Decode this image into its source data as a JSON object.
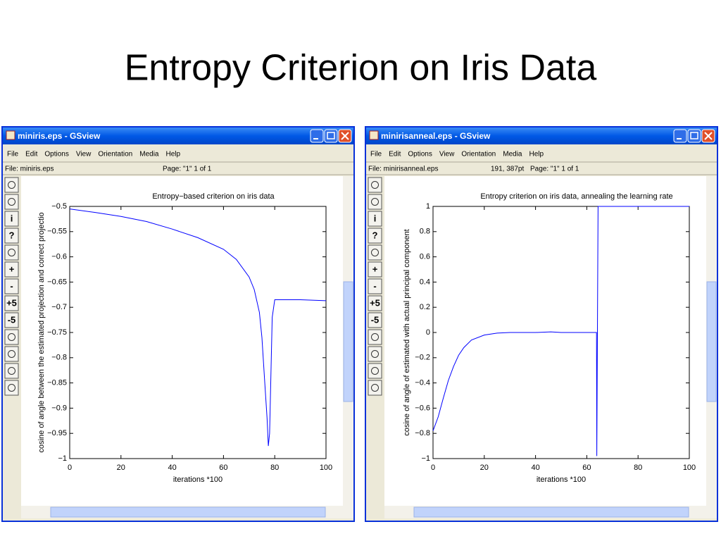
{
  "slide_title": "Entropy Criterion on Iris Data",
  "windows": [
    {
      "title": "miniris.eps - GSview",
      "menu": [
        "File",
        "Edit",
        "Options",
        "View",
        "Orientation",
        "Media",
        "Help"
      ],
      "status": [
        "File: miniris.eps",
        "Page: \"1\"  1 of 1"
      ],
      "toolbar": [
        "i",
        "?",
        "+",
        "-",
        "+5",
        "-5"
      ],
      "chart": {
        "type": "line",
        "title": "Entropy−based criterion on iris data",
        "xlabel": "iterations *100",
        "ylabel": "cosine of angle between the estimated projection and correct projectio",
        "color": "#0000ff",
        "x": [
          0,
          10,
          20,
          30,
          40,
          50,
          60,
          65,
          70,
          72,
          74,
          75,
          76,
          77,
          77.5,
          78,
          79,
          80,
          90,
          100
        ],
        "values": [
          -0.505,
          -0.512,
          -0.52,
          -0.53,
          -0.545,
          -0.562,
          -0.585,
          -0.605,
          -0.64,
          -0.665,
          -0.71,
          -0.76,
          -0.84,
          -0.92,
          -0.975,
          -0.95,
          -0.72,
          -0.685,
          -0.685,
          -0.687
        ],
        "xlim": [
          0,
          100
        ],
        "ylim": [
          -1,
          -0.5
        ],
        "xticks": [
          0,
          20,
          40,
          60,
          80,
          100
        ],
        "yticks": [
          {
            "value": -1,
            "label": "−1"
          },
          {
            "value": -0.95,
            "label": "−0.95"
          },
          {
            "value": -0.9,
            "label": "−0.9"
          },
          {
            "value": -0.85,
            "label": "−0.85"
          },
          {
            "value": -0.8,
            "label": "−0.8"
          },
          {
            "value": -0.75,
            "label": "−0.75"
          },
          {
            "value": -0.7,
            "label": "−0.7"
          },
          {
            "value": -0.65,
            "label": "−0.65"
          },
          {
            "value": -0.6,
            "label": "−0.6"
          },
          {
            "value": -0.55,
            "label": "−0.55"
          },
          {
            "value": -0.5,
            "label": "−0.5"
          }
        ]
      }
    },
    {
      "title": "minirisanneal.eps - GSview",
      "menu": [
        "File",
        "Edit",
        "Options",
        "View",
        "Orientation",
        "Media",
        "Help"
      ],
      "status": [
        "File: minirisanneal.eps",
        "191, 387pt",
        "Page: \"1\"  1 of 1"
      ],
      "toolbar": [
        "i",
        "?",
        "+",
        "-",
        "+5",
        "-5"
      ],
      "chart": {
        "type": "line",
        "title": "Entropy criterion on iris data, annealing the learning rate",
        "xlabel": "iterations *100",
        "ylabel": "cosine of angle of estimated with actual principal component",
        "color": "#0000ff",
        "x": [
          0,
          2,
          4,
          6,
          8,
          10,
          12,
          15,
          20,
          25,
          30,
          40,
          46,
          50,
          63.8,
          63.9,
          64.4,
          100
        ],
        "values": [
          -0.78,
          -0.67,
          -0.52,
          -0.38,
          -0.27,
          -0.18,
          -0.12,
          -0.06,
          -0.02,
          -0.005,
          0,
          0,
          0.005,
          0,
          0,
          -0.98,
          1,
          1
        ],
        "xlim": [
          0,
          100
        ],
        "ylim": [
          -1,
          1
        ],
        "xticks": [
          0,
          20,
          40,
          60,
          80,
          100
        ],
        "yticks": [
          {
            "value": -1,
            "label": "−1"
          },
          {
            "value": -0.8,
            "label": "−0.8"
          },
          {
            "value": -0.6,
            "label": "−0.6"
          },
          {
            "value": -0.4,
            "label": "−0.4"
          },
          {
            "value": -0.2,
            "label": "−0.2"
          },
          0,
          0.2,
          0.4,
          0.6,
          0.8,
          1
        ]
      }
    }
  ]
}
